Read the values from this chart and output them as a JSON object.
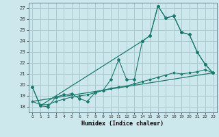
{
  "title": "",
  "xlabel": "Humidex (Indice chaleur)",
  "background_color": "#cce8ec",
  "grid_color": "#aacccc",
  "line_color": "#1a7a6e",
  "xlim": [
    -0.5,
    23.5
  ],
  "ylim": [
    17.5,
    27.5
  ],
  "xticks": [
    0,
    1,
    2,
    3,
    4,
    5,
    6,
    7,
    8,
    9,
    10,
    11,
    12,
    13,
    14,
    15,
    16,
    17,
    18,
    19,
    20,
    21,
    22,
    23
  ],
  "yticks": [
    18,
    19,
    20,
    21,
    22,
    23,
    24,
    25,
    26,
    27
  ],
  "series1_x": [
    0,
    1,
    2,
    3,
    4,
    5,
    6,
    7,
    8,
    9,
    10,
    11,
    12,
    13,
    14,
    15,
    16,
    17,
    18,
    19,
    20,
    21,
    22,
    23
  ],
  "series1_y": [
    19.8,
    18.1,
    18.0,
    18.9,
    19.1,
    19.2,
    18.75,
    18.5,
    19.3,
    19.5,
    20.5,
    22.3,
    20.5,
    20.5,
    24.0,
    24.5,
    27.2,
    26.1,
    26.3,
    24.8,
    24.6,
    23.0,
    21.9,
    21.1
  ],
  "series2_x": [
    0,
    1,
    2,
    3,
    4,
    5,
    6,
    7,
    8,
    9,
    10,
    11,
    12,
    13,
    14,
    15,
    16,
    17,
    18,
    19,
    20,
    21,
    22,
    23
  ],
  "series2_y": [
    18.5,
    18.2,
    18.2,
    18.5,
    18.7,
    18.9,
    19.0,
    19.1,
    19.3,
    19.5,
    19.7,
    19.8,
    19.9,
    20.1,
    20.3,
    20.5,
    20.7,
    20.9,
    21.1,
    21.0,
    21.1,
    21.2,
    21.4,
    21.1
  ],
  "series3_x": [
    0,
    1,
    14,
    15,
    16,
    17,
    18,
    19,
    20,
    21,
    22,
    23
  ],
  "series3_y": [
    19.8,
    18.1,
    24.0,
    24.5,
    27.2,
    26.1,
    26.3,
    24.8,
    24.6,
    23.0,
    21.9,
    21.1
  ],
  "series4_x": [
    0,
    23
  ],
  "series4_y": [
    18.5,
    21.1
  ]
}
